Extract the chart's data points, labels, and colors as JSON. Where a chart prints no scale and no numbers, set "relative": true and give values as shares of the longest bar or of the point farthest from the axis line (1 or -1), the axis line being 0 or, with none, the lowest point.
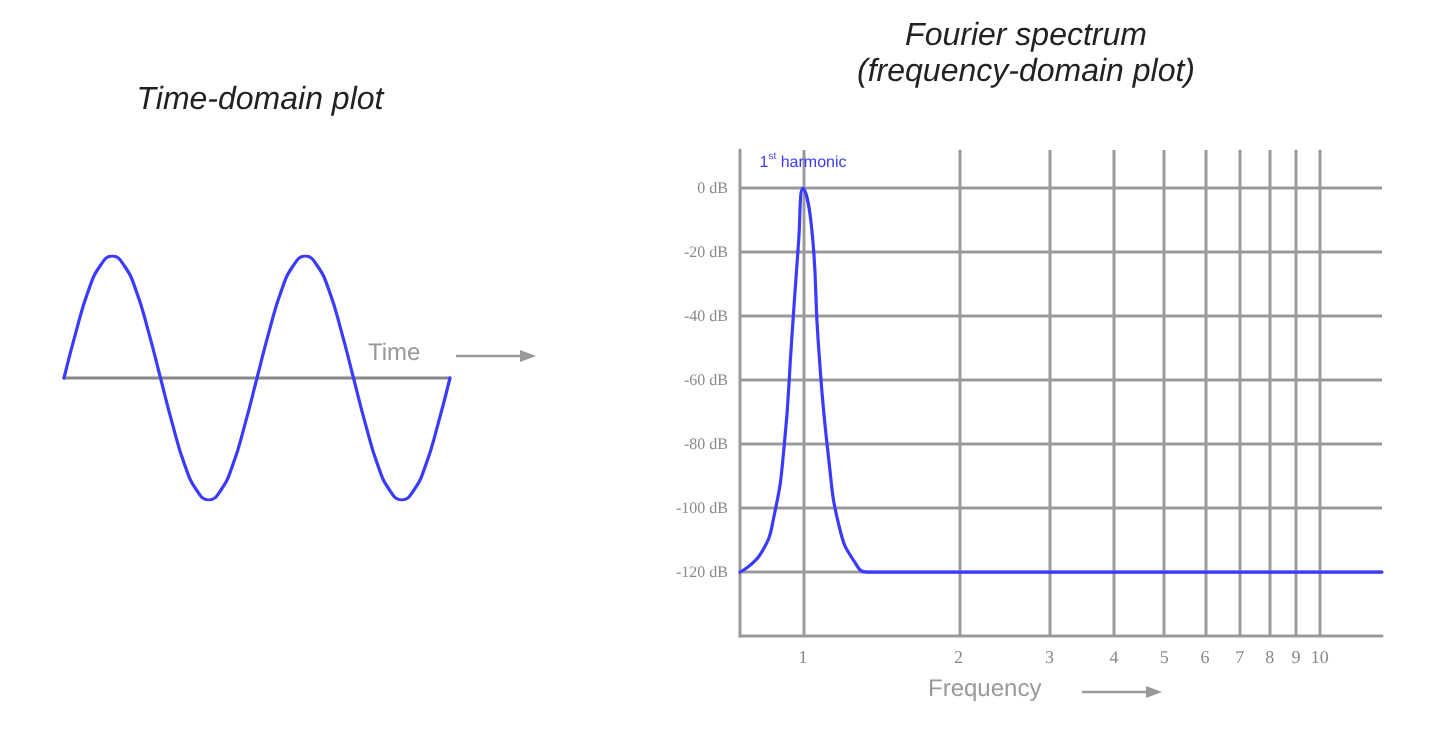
{
  "chart_data": [
    {
      "type": "line",
      "title": "Time-domain plot",
      "xlabel": "Time",
      "relative": true,
      "marker": "none",
      "color": "#3b3bff",
      "categories": [
        null,
        null,
        null,
        null,
        null,
        null,
        null,
        null,
        null,
        null,
        null,
        null,
        null,
        null,
        null,
        null,
        null,
        null,
        null,
        null,
        null,
        null,
        null,
        null,
        null,
        null,
        null,
        null,
        null,
        null,
        null,
        null,
        null
      ],
      "values": [
        0,
        0.38,
        0.71,
        0.92,
        1,
        0.92,
        0.71,
        0.38,
        0,
        -0.38,
        -0.71,
        -0.92,
        -1,
        -0.92,
        -0.71,
        -0.38,
        0,
        0.38,
        0.71,
        0.92,
        1,
        0.92,
        0.71,
        0.38,
        0,
        -0.38,
        -0.71,
        -0.92,
        -1,
        -0.92,
        -0.71,
        -0.38,
        0
      ]
    },
    {
      "type": "line",
      "title": "Fourier spectrum\n(frequency-domain plot)",
      "xlabel": "Frequency",
      "log": "x",
      "grid": true,
      "marker": "none",
      "color": "#3b3bff",
      "x": [
        0.755,
        0.83,
        0.88,
        0.92,
        0.95,
        0.98,
        1.0,
        1.04,
        1.07,
        1.12,
        1.18,
        1.26,
        1.33,
        13.2
      ],
      "values": [
        -120,
        -114,
        -102,
        -80,
        -48,
        -17,
        0,
        -13,
        -48,
        -84,
        -107,
        -117,
        -120,
        -120
      ],
      "xlim": [
        0.755,
        13.2
      ],
      "xticks": [
        1,
        2,
        3,
        4,
        5,
        6,
        7,
        8,
        9,
        10
      ],
      "ylim": [
        -140,
        12
      ],
      "yticks": [
        {
          "value": 0,
          "label": "0 dB"
        },
        {
          "value": -20,
          "label": "-20 dB"
        },
        {
          "value": -40,
          "label": "-40 dB"
        },
        {
          "value": -60,
          "label": "-60 dB"
        },
        {
          "value": -80,
          "label": "-80 dB"
        },
        {
          "value": -100,
          "label": "-100 dB"
        },
        {
          "value": -120,
          "label": "-120 dB"
        }
      ],
      "annotations": [
        {
          "text": "1$^{st}$ harmonic",
          "x": 1,
          "y": 0
        }
      ]
    }
  ]
}
